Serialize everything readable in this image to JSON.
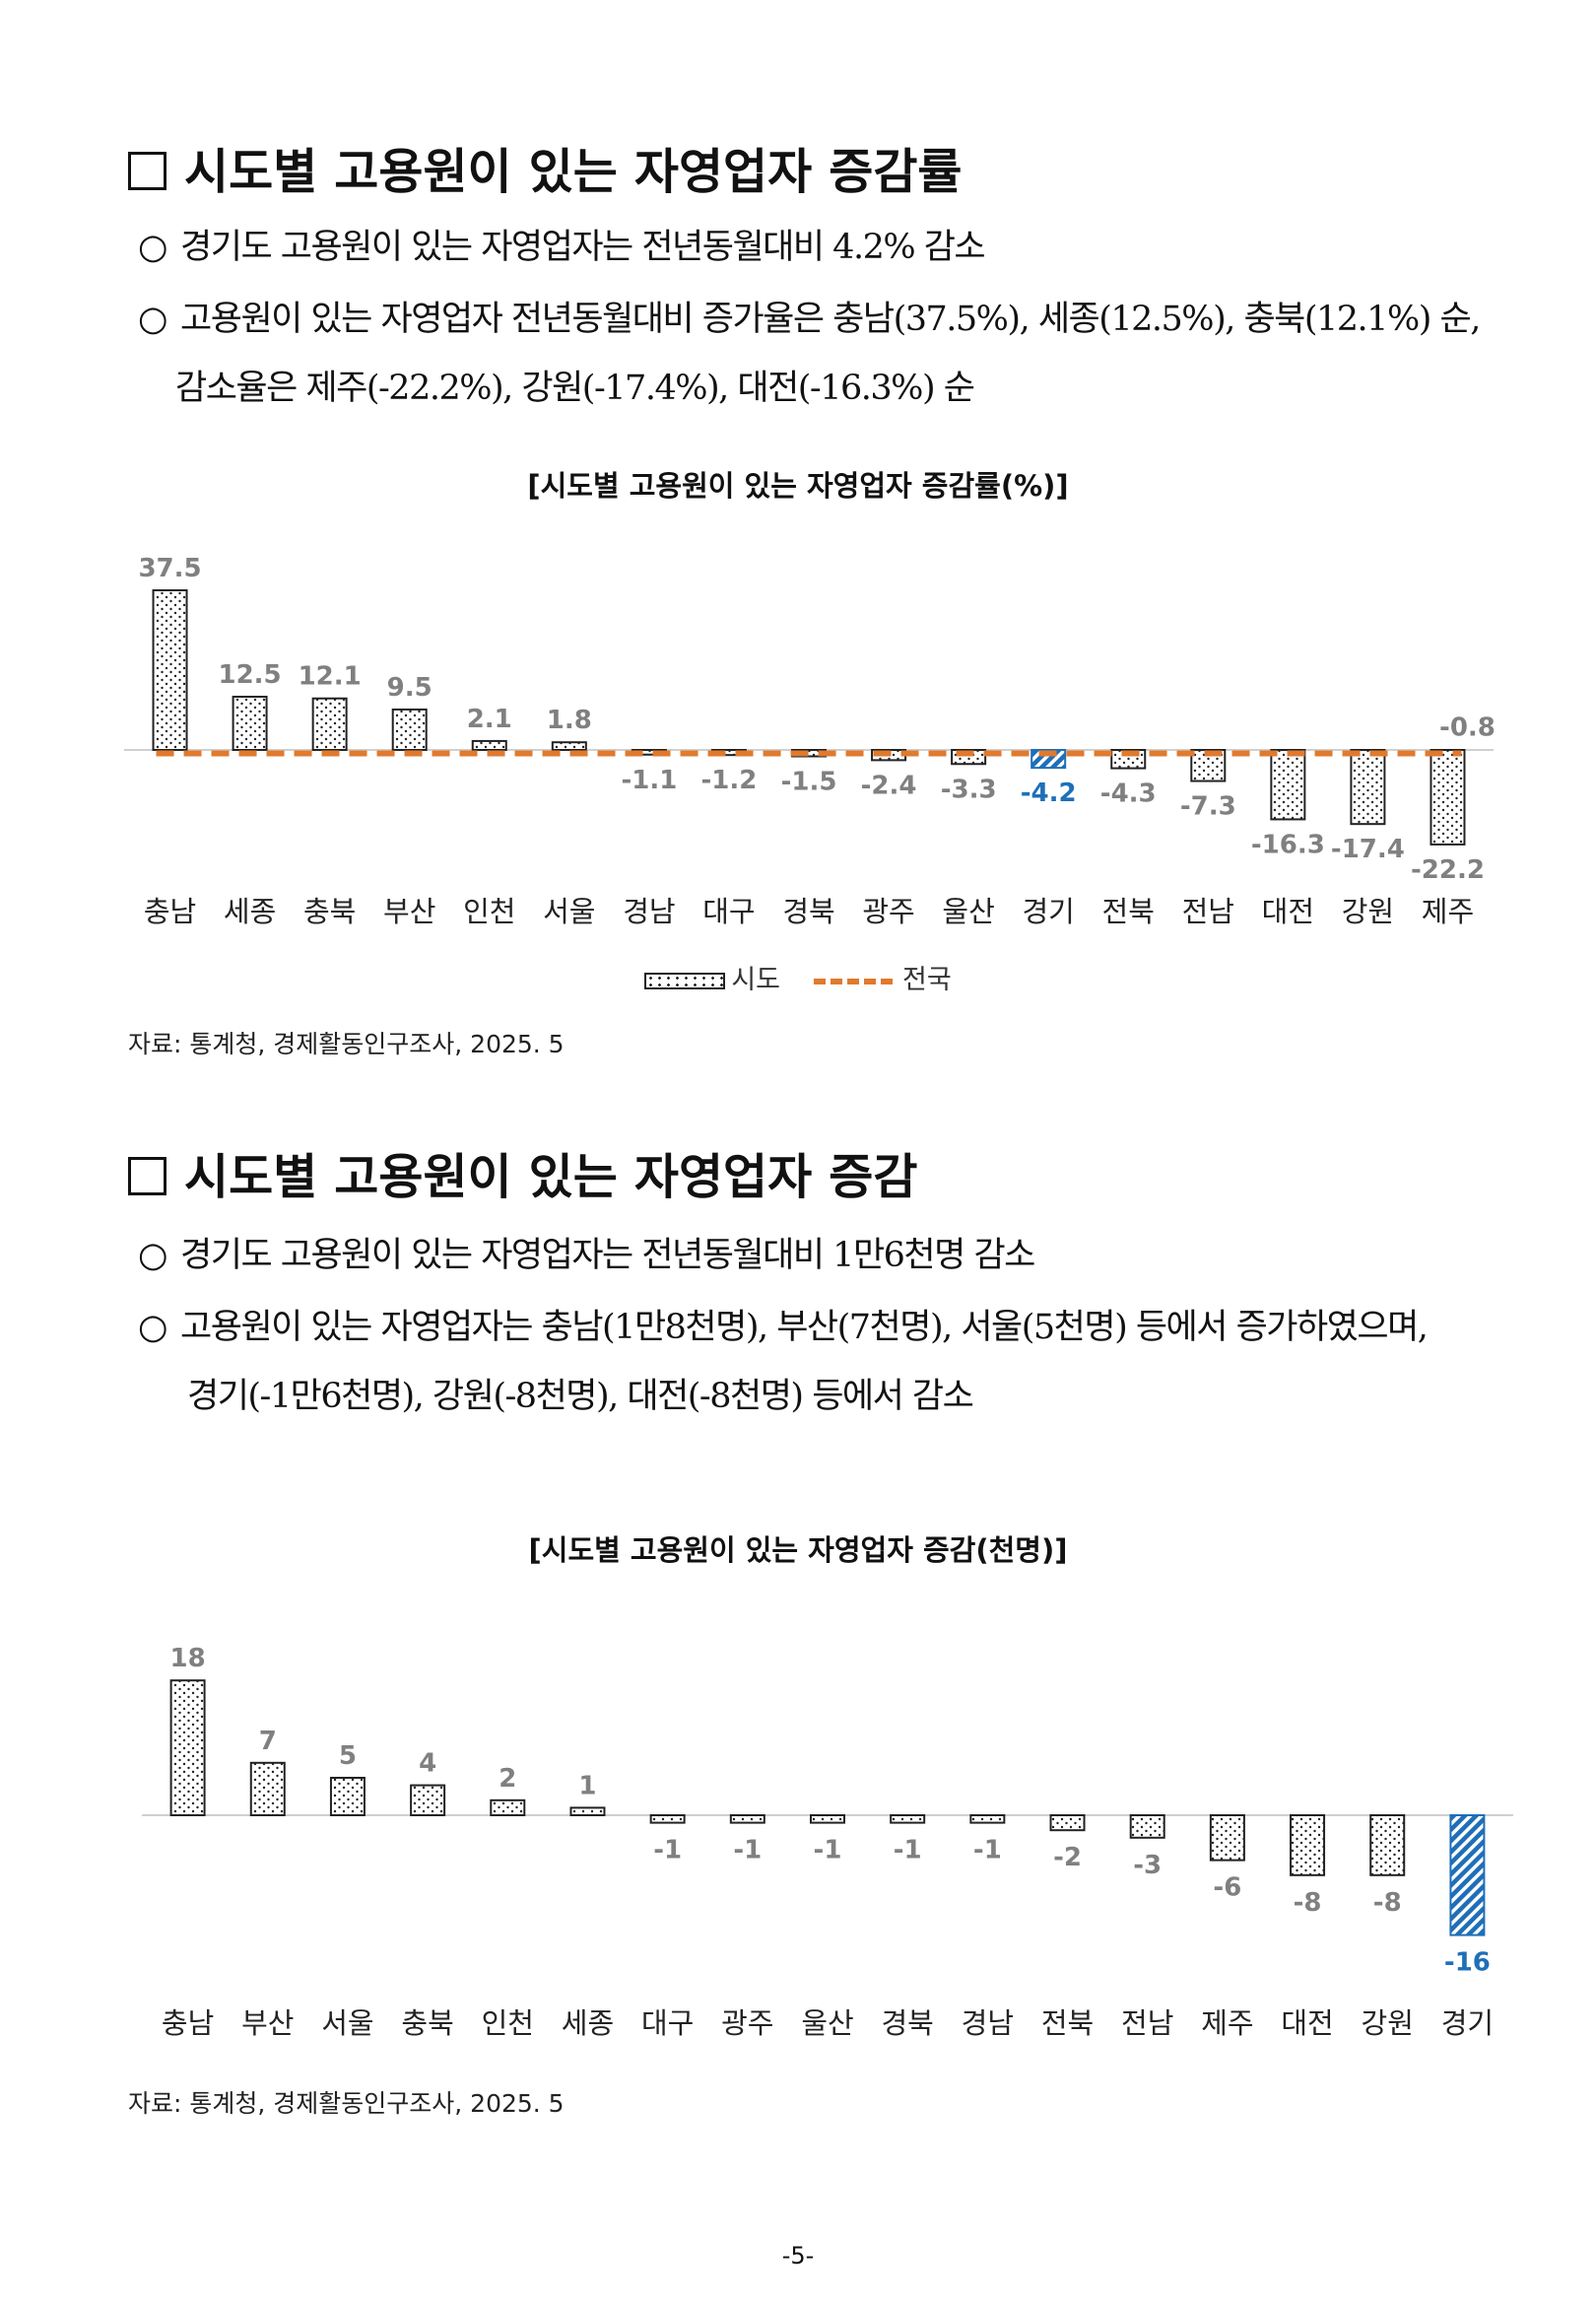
{
  "section1": {
    "title": "시도별 고용원이 있는 자영업자 증감률",
    "bullets": [
      "경기도 고용원이 있는 자영업자는 전년동월대비 4.2% 감소",
      "고용원이 있는 자영업자 전년동월대비 증가율은 충남(37.5%), 세종(12.5%), 충북(12.1%) 순,",
      "감소율은 제주(-22.2%), 강원(-17.4%), 대전(-16.3%) 순"
    ],
    "bullet_symbol": "○",
    "source": "자료: 통계청, 경제활동인구조사, 2025. 5"
  },
  "section2": {
    "title": "시도별 고용원이 있는 자영업자 증감",
    "bullets": [
      "경기도 고용원이 있는 자영업자는 전년동월대비 1만6천명 감소",
      "고용원이 있는 자영업자는  충남(1만8천명), 부산(7천명), 서울(5천명) 등에서 증가하였으며,",
      "경기(-1만6천명), 강원(-8천명), 대전(-8천명) 등에서 감소"
    ],
    "bullet_symbol": "○",
    "source": "자료: 통계청, 경제활동인구조사, 2025. 5"
  },
  "page_number": "-5-",
  "chart_data": [
    {
      "type": "bar",
      "title": "[시도별 고용원이 있는 자영업자 증감률(%)]",
      "categories": [
        "충남",
        "세종",
        "충북",
        "부산",
        "인천",
        "서울",
        "경남",
        "대구",
        "경북",
        "광주",
        "울산",
        "경기",
        "전북",
        "전남",
        "대전",
        "강원",
        "제주"
      ],
      "values": [
        37.5,
        12.5,
        12.1,
        9.5,
        2.1,
        1.8,
        -1.1,
        -1.2,
        -1.5,
        -2.4,
        -3.3,
        -4.2,
        -4.3,
        -7.3,
        -16.3,
        -17.4,
        -22.2
      ],
      "labels": [
        "37.5",
        "12.5",
        "12.1",
        "9.5",
        "2.1",
        "1.8",
        "-1.1",
        "-1.2",
        "-1.5",
        "-2.4",
        "-3.3",
        "-4.2",
        "-4.3",
        "-7.3",
        "-16.3",
        "-17.4",
        "-22.2"
      ],
      "highlight": "경기",
      "reference_line": {
        "name": "전국",
        "value": -0.8,
        "label": "-0.8"
      },
      "legend": {
        "bar": "시도",
        "line": "전국",
        "position": "bottom"
      },
      "colors": {
        "bar_pattern": "#222222",
        "highlight": "#1f6fb8",
        "line": "#e07a2e",
        "label": "#808080"
      }
    },
    {
      "type": "bar",
      "title": "[시도별 고용원이 있는 자영업자 증감(천명)]",
      "categories": [
        "충남",
        "부산",
        "서울",
        "충북",
        "인천",
        "세종",
        "대구",
        "광주",
        "울산",
        "경북",
        "경남",
        "전북",
        "전남",
        "제주",
        "대전",
        "강원",
        "경기"
      ],
      "values": [
        18,
        7,
        5,
        4,
        2,
        1,
        -1,
        -1,
        -1,
        -1,
        -1,
        -2,
        -3,
        -6,
        -8,
        -8,
        -16
      ],
      "labels": [
        "18",
        "7",
        "5",
        "4",
        "2",
        "1",
        "-1",
        "-1",
        "-1",
        "-1",
        "-1",
        "-2",
        "-3",
        "-6",
        "-8",
        "-8",
        "-16"
      ],
      "highlight": "경기",
      "colors": {
        "bar_pattern": "#222222",
        "highlight": "#1f6fb8",
        "label": "#808080"
      }
    }
  ]
}
